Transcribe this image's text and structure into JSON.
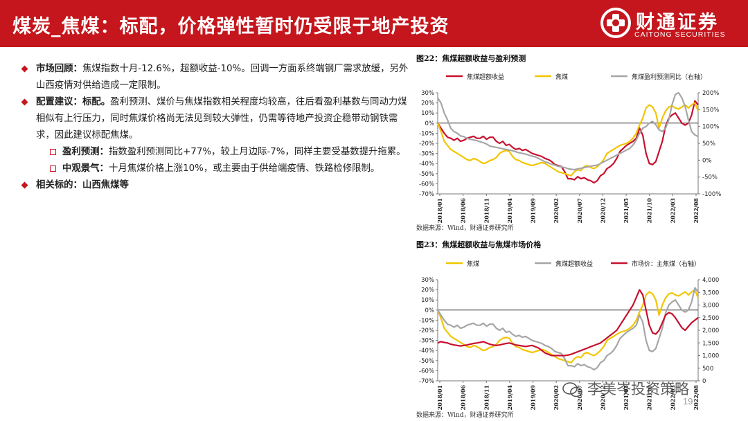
{
  "header": {
    "title": "煤炭_焦煤：标配，价格弹性暂时仍受限于地产投资",
    "logo_cn": "财通证券",
    "logo_en": "CAITONG SECURITIES"
  },
  "bullets": {
    "b1_label": "市场回顾：",
    "b1_text": "焦煤指数十月-12.6%，超额收益-10%。回调一方面系终端钢厂需求放缓，另外山西疫情对供给造成一定限制。",
    "b2_label": "配置建议：标配。",
    "b2_text": "盈利预测、煤价与焦煤指数相关程度均较高，往后看盈利基数与同动力煤相似有上行压力，同时焦煤价格尚无法见到较大弹性，仍需等待地产投资企稳带动钢铁需求，因此建议标配焦煤。",
    "s1_label": "盈利预测：",
    "s1_text": "指数盈利预测同比+77%，较上月边际-7%，同样主要受基数提升拖累。",
    "s2_label": "中观景气：",
    "s2_text": "十月焦煤价格上涨10%，或主要由于供给端疫情、铁路检修限制。",
    "b3_text": "相关标的：山西焦煤等"
  },
  "fig22": {
    "title": "图22：焦煤超额收益与盈利预测",
    "source": "数据来源：Wind，财通证券研究所"
  },
  "fig23": {
    "title": "图23：焦煤超额收益与焦煤市场价格",
    "source": "数据来源：Wind，财通证券研究所"
  },
  "page_number": "19",
  "watermark": "李美岑投资策略",
  "colors": {
    "brand_red": "#c4161c",
    "gold": "#f2c500",
    "gray": "#a6a6a6",
    "dark_red": "#c8102e"
  },
  "chart_data": [
    {
      "type": "line",
      "title": "图22：焦煤超额收益与盈利预测",
      "x_ticks": [
        "2018/01",
        "2018/06",
        "2018/11",
        "2019/04",
        "2019/09",
        "2020/02",
        "2020/07",
        "2020/12",
        "2021/05",
        "2021/10",
        "2022/03",
        "2022/08"
      ],
      "y_left_ticks": [
        "30%",
        "20%",
        "10%",
        "0%",
        "-10%",
        "-20%",
        "-30%",
        "-40%",
        "-50%",
        "-60%",
        "-70%"
      ],
      "y_left_range": [
        -70,
        30
      ],
      "y_right_ticks": [
        "200%",
        "150%",
        "100%",
        "50%",
        "0%",
        "-50%",
        "-100%"
      ],
      "y_right_range": [
        -100,
        200
      ],
      "series": [
        {
          "name": "焦煤超额收益",
          "axis": "left",
          "color": "#c8102e",
          "values": [
            0,
            -5,
            -10,
            -14,
            -15,
            -17,
            -15,
            -18,
            -17,
            -15,
            -14,
            -13,
            -15,
            -15,
            -13,
            -16,
            -14,
            -14,
            -18,
            -20,
            -18,
            -22,
            -21,
            -24,
            -26,
            -25,
            -27,
            -26,
            -28,
            -30,
            -31,
            -32,
            -33,
            -35,
            -36,
            -38,
            -41,
            -42,
            -43,
            -48,
            -55,
            -55,
            -56,
            -53,
            -55,
            -54,
            -56,
            -57,
            -59,
            -57,
            -52,
            -50,
            -45,
            -43,
            -40,
            -35,
            -28,
            -25,
            -22,
            -20,
            -18,
            -15,
            -5,
            -12,
            -30,
            -40,
            -41,
            -38,
            -28,
            -18,
            -3,
            5,
            8,
            10,
            5,
            0,
            -2,
            0,
            8,
            22,
            18
          ]
        },
        {
          "name": "焦煤",
          "axis": "left",
          "color": "#f2c500",
          "values": [
            0,
            -8,
            -18,
            -22,
            -26,
            -28,
            -30,
            -32,
            -34,
            -36,
            -37,
            -35,
            -36,
            -38,
            -40,
            -39,
            -37,
            -36,
            -34,
            -30,
            -28,
            -27,
            -28,
            -33,
            -36,
            -37,
            -39,
            -40,
            -41,
            -42,
            -41,
            -40,
            -39,
            -40,
            -42,
            -44,
            -46,
            -48,
            -49,
            -50,
            -51,
            -52,
            -48,
            -46,
            -47,
            -43,
            -42,
            -44,
            -45,
            -43,
            -40,
            -36,
            -30,
            -28,
            -26,
            -24,
            -22,
            -21,
            -20,
            -18,
            -15,
            -10,
            -2,
            5,
            15,
            18,
            16,
            10,
            -5,
            5,
            12,
            16,
            17,
            15,
            14,
            16,
            18,
            15,
            18,
            20,
            12
          ]
        },
        {
          "name": "焦煤盈利预测同比（右轴）",
          "axis": "right",
          "color": "#a6a6a6",
          "values": [
            185,
            170,
            140,
            120,
            95,
            85,
            80,
            72,
            70,
            65,
            62,
            60,
            58,
            55,
            52,
            48,
            42,
            40,
            38,
            36,
            34,
            32,
            30,
            28,
            25,
            22,
            20,
            18,
            15,
            12,
            10,
            5,
            0,
            -5,
            -8,
            -12,
            -15,
            -18,
            -20,
            -22,
            -25,
            -27,
            -28,
            -26,
            -24,
            -22,
            -20,
            -18,
            -16,
            -15,
            -10,
            -5,
            0,
            5,
            10,
            15,
            20,
            25,
            30,
            35,
            45,
            60,
            80,
            95,
            100,
            110,
            115,
            105,
            90,
            85,
            95,
            120,
            165,
            195,
            200,
            185,
            160,
            120,
            85,
            75,
            70
          ]
        }
      ]
    },
    {
      "type": "line",
      "title": "图23：焦煤超额收益与焦煤市场价格",
      "x_ticks": [
        "2018/01",
        "2018/06",
        "2018/11",
        "2019/04",
        "2019/09",
        "2020/02",
        "2020/07",
        "2020/12",
        "2021/05",
        "2021/10",
        "2022/03",
        "2022/08"
      ],
      "y_left_ticks": [
        "30%",
        "20%",
        "10%",
        "0%",
        "-10%",
        "-20%",
        "-30%",
        "-40%",
        "-50%",
        "-60%",
        "-70%"
      ],
      "y_left_range": [
        -70,
        30
      ],
      "y_right_ticks": [
        "4,000",
        "3,500",
        "3,000",
        "2,500",
        "2,000",
        "1,500",
        "1,000",
        "500",
        "0"
      ],
      "y_right_range": [
        0,
        4000
      ],
      "series": [
        {
          "name": "焦煤",
          "axis": "left",
          "color": "#f2c500",
          "values": [
            0,
            -8,
            -18,
            -22,
            -26,
            -28,
            -30,
            -32,
            -34,
            -36,
            -37,
            -35,
            -36,
            -38,
            -40,
            -39,
            -37,
            -36,
            -34,
            -30,
            -28,
            -27,
            -28,
            -33,
            -36,
            -37,
            -39,
            -40,
            -41,
            -42,
            -41,
            -40,
            -39,
            -40,
            -42,
            -44,
            -46,
            -48,
            -49,
            -50,
            -51,
            -52,
            -48,
            -46,
            -47,
            -43,
            -42,
            -44,
            -45,
            -43,
            -40,
            -36,
            -30,
            -28,
            -26,
            -24,
            -22,
            -21,
            -20,
            -18,
            -15,
            -10,
            -2,
            5,
            15,
            18,
            16,
            10,
            -5,
            5,
            12,
            16,
            17,
            15,
            14,
            16,
            18,
            15,
            18,
            20,
            12
          ]
        },
        {
          "name": "焦煤超额收益",
          "axis": "left",
          "color": "#a6a6a6",
          "values": [
            0,
            -5,
            -10,
            -14,
            -15,
            -17,
            -15,
            -18,
            -17,
            -15,
            -14,
            -13,
            -15,
            -15,
            -13,
            -16,
            -14,
            -14,
            -18,
            -20,
            -18,
            -22,
            -21,
            -24,
            -26,
            -25,
            -27,
            -26,
            -28,
            -30,
            -31,
            -32,
            -33,
            -35,
            -36,
            -38,
            -41,
            -42,
            -43,
            -48,
            -55,
            -55,
            -56,
            -53,
            -55,
            -54,
            -56,
            -57,
            -59,
            -57,
            -52,
            -50,
            -45,
            -43,
            -40,
            -35,
            -28,
            -25,
            -22,
            -20,
            -18,
            -15,
            -5,
            -12,
            -30,
            -40,
            -41,
            -38,
            -28,
            -18,
            -3,
            5,
            8,
            10,
            5,
            0,
            -2,
            0,
            8,
            22,
            18
          ]
        },
        {
          "name": "市场价：主焦煤（右轴）",
          "axis": "right",
          "color": "#c8102e",
          "values": [
            1500,
            1550,
            1520,
            1500,
            1450,
            1420,
            1400,
            1380,
            1400,
            1420,
            1450,
            1480,
            1500,
            1520,
            1550,
            1500,
            1450,
            1420,
            1400,
            1420,
            1450,
            1480,
            1500,
            1460,
            1420,
            1400,
            1380,
            1360,
            1380,
            1400,
            1350,
            1300,
            1200,
            1100,
            1050,
            1000,
            1000,
            1000,
            1000,
            1000,
            1020,
            1050,
            1100,
            1150,
            1200,
            1250,
            1300,
            1350,
            1400,
            1450,
            1500,
            1600,
            1700,
            1800,
            1900,
            2000,
            2200,
            2400,
            2600,
            2800,
            3000,
            3300,
            3600,
            3400,
            2800,
            2200,
            1900,
            1850,
            2000,
            2300,
            2600,
            2700,
            2650,
            2500,
            2300,
            2100,
            2000,
            2150,
            2300,
            2400,
            2500
          ]
        }
      ]
    }
  ]
}
